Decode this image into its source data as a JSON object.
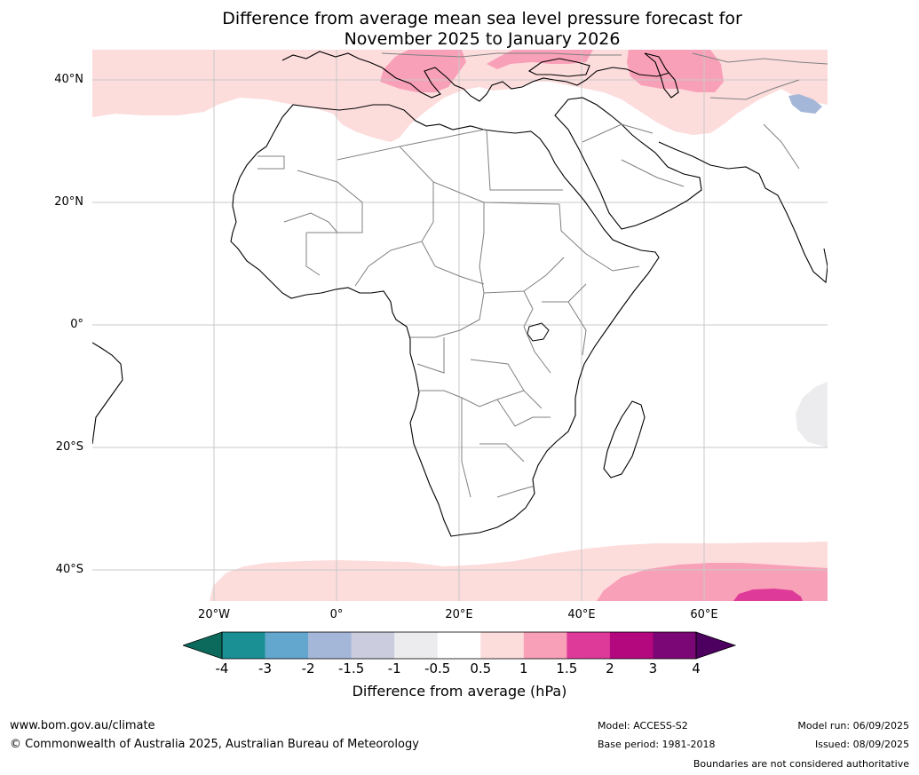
{
  "title_line1": "Difference from average mean sea level pressure forecast for",
  "title_line2": "November 2025 to January 2026",
  "lat_labels": [
    "40°N",
    "20°N",
    "0°",
    "20°S",
    "40°S"
  ],
  "lon_labels": [
    "20°W",
    "0°",
    "20°E",
    "40°E",
    "60°E"
  ],
  "colorbar": {
    "ticks": [
      "-4",
      "-3",
      "-2",
      "-1.5",
      "-1",
      "-0.5",
      "0.5",
      "1",
      "1.5",
      "2",
      "3",
      "4"
    ],
    "colors": [
      "#1a8f94",
      "#63a7cf",
      "#a5b7d9",
      "#ccccdf",
      "#ecebee",
      "#ffffff",
      "#fddcdc",
      "#f9a0b9",
      "#de3a99",
      "#b3087e",
      "#7b0675"
    ],
    "under_color": "#0c6a5d",
    "over_color": "#4d0060",
    "label": "Difference from average (hPa)"
  },
  "colors": {
    "land_fill": "#ffffff",
    "coast": "#000000",
    "border": "#808080",
    "grid": "#c8c8c8",
    "anom_light_pink": "#fddcdc",
    "anom_pink": "#f9a0b9",
    "anom_magenta": "#de3a99",
    "anom_grey": "#ecebee",
    "anom_blue": "#a5b7d9"
  },
  "footer": {
    "url": "www.bom.gov.au/climate",
    "copyright": "© Commonwealth of Australia 2025, Australian Bureau of Meteorology",
    "model": "Model: ACCESS-S2",
    "base_period": "Base period: 1981-2018",
    "model_run": "Model run: 06/09/2025",
    "issued": "Issued: 08/09/2025",
    "disclaimer": "Boundaries are not considered authoritative"
  }
}
